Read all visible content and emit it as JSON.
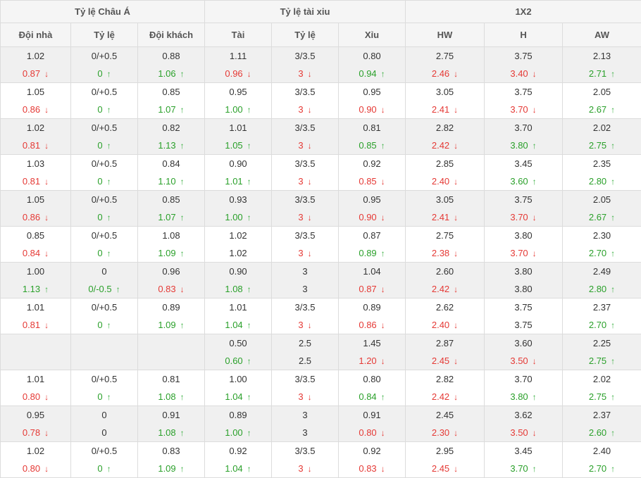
{
  "groups": [
    "Tỷ lệ Châu Á",
    "Tỷ lệ tài xiu",
    "1X2"
  ],
  "columns": [
    "Đội nhà",
    "Tỷ lệ",
    "Đội khách",
    "Tài",
    "Tỷ lệ",
    "Xỉu",
    "HW",
    "H",
    "AW"
  ],
  "icons": {
    "up": "arrow-up-icon",
    "down": "arrow-down-icon"
  },
  "colors": {
    "up": "#3cb043",
    "down": "#e53935"
  },
  "rows": [
    {
      "open": [
        "1.02",
        "0/+0.5",
        "0.88",
        "1.11",
        "3/3.5",
        "0.80",
        "2.75",
        "3.75",
        "2.13"
      ],
      "cur": [
        [
          "0.87",
          "down"
        ],
        [
          "0",
          "up"
        ],
        [
          "1.06",
          "up"
        ],
        [
          "0.96",
          "down"
        ],
        [
          "3",
          "down"
        ],
        [
          "0.94",
          "up"
        ],
        [
          "2.46",
          "down"
        ],
        [
          "3.40",
          "down"
        ],
        [
          "2.71",
          "up"
        ]
      ]
    },
    {
      "open": [
        "1.05",
        "0/+0.5",
        "0.85",
        "0.95",
        "3/3.5",
        "0.95",
        "3.05",
        "3.75",
        "2.05"
      ],
      "cur": [
        [
          "0.86",
          "down"
        ],
        [
          "0",
          "up"
        ],
        [
          "1.07",
          "up"
        ],
        [
          "1.00",
          "up"
        ],
        [
          "3",
          "down"
        ],
        [
          "0.90",
          "down"
        ],
        [
          "2.41",
          "down"
        ],
        [
          "3.70",
          "down"
        ],
        [
          "2.67",
          "up"
        ]
      ]
    },
    {
      "open": [
        "1.02",
        "0/+0.5",
        "0.82",
        "1.01",
        "3/3.5",
        "0.81",
        "2.82",
        "3.70",
        "2.02"
      ],
      "cur": [
        [
          "0.81",
          "down"
        ],
        [
          "0",
          "up"
        ],
        [
          "1.13",
          "up"
        ],
        [
          "1.05",
          "up"
        ],
        [
          "3",
          "down"
        ],
        [
          "0.85",
          "up"
        ],
        [
          "2.42",
          "down"
        ],
        [
          "3.80",
          "up"
        ],
        [
          "2.75",
          "up"
        ]
      ]
    },
    {
      "open": [
        "1.03",
        "0/+0.5",
        "0.84",
        "0.90",
        "3/3.5",
        "0.92",
        "2.85",
        "3.45",
        "2.35"
      ],
      "cur": [
        [
          "0.81",
          "down"
        ],
        [
          "0",
          "up"
        ],
        [
          "1.10",
          "up"
        ],
        [
          "1.01",
          "up"
        ],
        [
          "3",
          "down"
        ],
        [
          "0.85",
          "down"
        ],
        [
          "2.40",
          "down"
        ],
        [
          "3.60",
          "up"
        ],
        [
          "2.80",
          "up"
        ]
      ]
    },
    {
      "open": [
        "1.05",
        "0/+0.5",
        "0.85",
        "0.93",
        "3/3.5",
        "0.95",
        "3.05",
        "3.75",
        "2.05"
      ],
      "cur": [
        [
          "0.86",
          "down"
        ],
        [
          "0",
          "up"
        ],
        [
          "1.07",
          "up"
        ],
        [
          "1.00",
          "up"
        ],
        [
          "3",
          "down"
        ],
        [
          "0.90",
          "down"
        ],
        [
          "2.41",
          "down"
        ],
        [
          "3.70",
          "down"
        ],
        [
          "2.67",
          "up"
        ]
      ]
    },
    {
      "open": [
        "0.85",
        "0/+0.5",
        "1.08",
        "1.02",
        "3/3.5",
        "0.87",
        "2.75",
        "3.80",
        "2.30"
      ],
      "cur": [
        [
          "0.84",
          "down"
        ],
        [
          "0",
          "up"
        ],
        [
          "1.09",
          "up"
        ],
        [
          "1.02",
          ""
        ],
        [
          "3",
          "down"
        ],
        [
          "0.89",
          "up"
        ],
        [
          "2.38",
          "down"
        ],
        [
          "3.70",
          "down"
        ],
        [
          "2.70",
          "up"
        ]
      ]
    },
    {
      "open": [
        "1.00",
        "0",
        "0.96",
        "0.90",
        "3",
        "1.04",
        "2.60",
        "3.80",
        "2.49"
      ],
      "cur": [
        [
          "1.13",
          "up"
        ],
        [
          "0/-0.5",
          "up"
        ],
        [
          "0.83",
          "down"
        ],
        [
          "1.08",
          "up"
        ],
        [
          "3",
          ""
        ],
        [
          "0.87",
          "down"
        ],
        [
          "2.42",
          "down"
        ],
        [
          "3.80",
          ""
        ],
        [
          "2.80",
          "up"
        ]
      ]
    },
    {
      "open": [
        "1.01",
        "0/+0.5",
        "0.89",
        "1.01",
        "3/3.5",
        "0.89",
        "2.62",
        "3.75",
        "2.37"
      ],
      "cur": [
        [
          "0.81",
          "down"
        ],
        [
          "0",
          "up"
        ],
        [
          "1.09",
          "up"
        ],
        [
          "1.04",
          "up"
        ],
        [
          "3",
          "down"
        ],
        [
          "0.86",
          "down"
        ],
        [
          "2.40",
          "down"
        ],
        [
          "3.75",
          ""
        ],
        [
          "2.70",
          "up"
        ]
      ]
    },
    {
      "open": [
        "",
        "",
        "",
        "0.50",
        "2.5",
        "1.45",
        "2.87",
        "3.60",
        "2.25"
      ],
      "cur": [
        [
          "",
          ""
        ],
        [
          "",
          ""
        ],
        [
          "",
          ""
        ],
        [
          "0.60",
          "up"
        ],
        [
          "2.5",
          ""
        ],
        [
          "1.20",
          "down"
        ],
        [
          "2.45",
          "down"
        ],
        [
          "3.50",
          "down"
        ],
        [
          "2.75",
          "up"
        ]
      ]
    },
    {
      "open": [
        "1.01",
        "0/+0.5",
        "0.81",
        "1.00",
        "3/3.5",
        "0.80",
        "2.82",
        "3.70",
        "2.02"
      ],
      "cur": [
        [
          "0.80",
          "down"
        ],
        [
          "0",
          "up"
        ],
        [
          "1.08",
          "up"
        ],
        [
          "1.04",
          "up"
        ],
        [
          "3",
          "down"
        ],
        [
          "0.84",
          "up"
        ],
        [
          "2.42",
          "down"
        ],
        [
          "3.80",
          "up"
        ],
        [
          "2.75",
          "up"
        ]
      ]
    },
    {
      "open": [
        "0.95",
        "0",
        "0.91",
        "0.89",
        "3",
        "0.91",
        "2.45",
        "3.62",
        "2.37"
      ],
      "cur": [
        [
          "0.78",
          "down"
        ],
        [
          "0",
          ""
        ],
        [
          "1.08",
          "up"
        ],
        [
          "1.00",
          "up"
        ],
        [
          "3",
          ""
        ],
        [
          "0.80",
          "down"
        ],
        [
          "2.30",
          "down"
        ],
        [
          "3.50",
          "down"
        ],
        [
          "2.60",
          "up"
        ]
      ]
    },
    {
      "open": [
        "1.02",
        "0/+0.5",
        "0.83",
        "0.92",
        "3/3.5",
        "0.92",
        "2.95",
        "3.45",
        "2.40"
      ],
      "cur": [
        [
          "0.80",
          "down"
        ],
        [
          "0",
          "up"
        ],
        [
          "1.09",
          "up"
        ],
        [
          "1.04",
          "up"
        ],
        [
          "3",
          "down"
        ],
        [
          "0.83",
          "down"
        ],
        [
          "2.45",
          "down"
        ],
        [
          "3.70",
          "up"
        ],
        [
          "2.70",
          "up"
        ]
      ]
    }
  ]
}
